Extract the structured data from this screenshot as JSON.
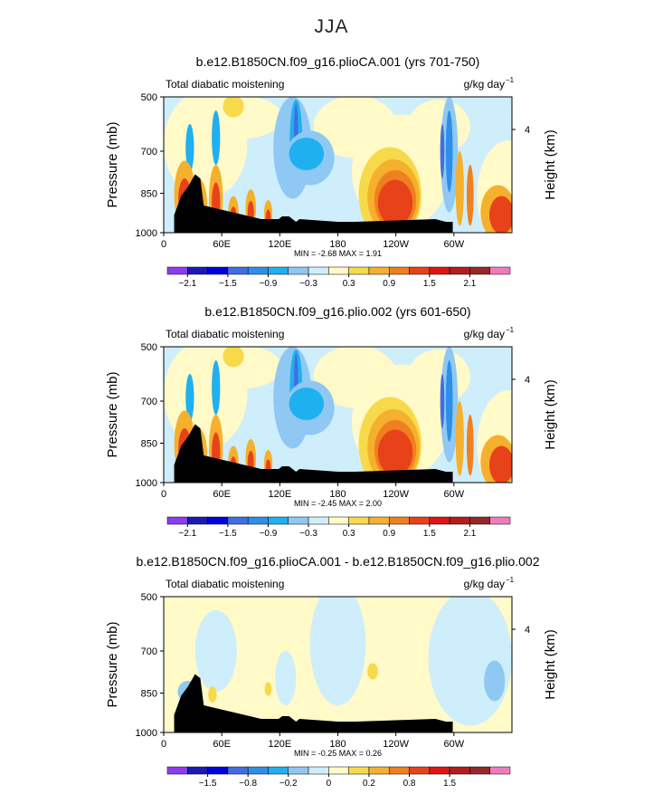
{
  "page_title": "JJA",
  "palette": [
    "#8b3df0",
    "#1a1ab5",
    "#0000e0",
    "#3f6fe0",
    "#2f8fe8",
    "#1fb0f0",
    "#8ec8f3",
    "#cfeefb",
    "#fffac8",
    "#f8d94a",
    "#f5b02d",
    "#f0801f",
    "#e8421a",
    "#e01414",
    "#b21e1e",
    "#962828",
    "#f07ac0"
  ],
  "chart_data": [
    {
      "type": "heatmap",
      "title": "b.e12.B1850CN.f09_g16.plioCA.001 (yrs 701-750)",
      "left_label": "Total diabatic moistening",
      "units_label": "g/kg day",
      "units_exp": "−1",
      "ylabel": "Pressure (mb)",
      "ylabel2": "Height (km)",
      "y_ticks": [
        "500",
        "700",
        "850",
        "1000"
      ],
      "y_right_ticks": [
        "4"
      ],
      "x_ticks": [
        "0",
        "60E",
        "120E",
        "180",
        "120W",
        "60W"
      ],
      "ylim": [
        1000,
        500
      ],
      "stats_label": "MIN =    -2.68   MAX =    1.91",
      "min": -2.68,
      "max": 1.91,
      "colorbar_labels": [
        "−2.1",
        "−1.5",
        "−0.9",
        "−0.3",
        "0.3",
        "0.9",
        "1.5",
        "2.1"
      ]
    },
    {
      "type": "heatmap",
      "title": "b.e12.B1850CN.f09_g16.plio.002 (yrs 601-650)",
      "left_label": "Total diabatic moistening",
      "units_label": "g/kg day",
      "units_exp": "−1",
      "ylabel": "Pressure (mb)",
      "ylabel2": "Height (km)",
      "y_ticks": [
        "500",
        "700",
        "850",
        "1000"
      ],
      "y_right_ticks": [
        "4"
      ],
      "x_ticks": [
        "0",
        "60E",
        "120E",
        "180",
        "120W",
        "60W"
      ],
      "ylim": [
        1000,
        500
      ],
      "stats_label": "MIN =    -2.45   MAX =    2.00",
      "min": -2.45,
      "max": 2.0,
      "colorbar_labels": [
        "−2.1",
        "−1.5",
        "−0.9",
        "−0.3",
        "0.3",
        "0.9",
        "1.5",
        "2.1"
      ]
    },
    {
      "type": "heatmap",
      "title": "b.e12.B1850CN.f09_g16.plioCA.001 - b.e12.B1850CN.f09_g16.plio.002",
      "left_label": "Total diabatic moistening",
      "units_label": "g/kg day",
      "units_exp": "−1",
      "ylabel": "Pressure (mb)",
      "ylabel2": "Height (km)",
      "y_ticks": [
        "500",
        "700",
        "850",
        "1000"
      ],
      "y_right_ticks": [
        "4"
      ],
      "x_ticks": [
        "0",
        "60E",
        "120E",
        "180",
        "120W",
        "60W"
      ],
      "ylim": [
        1000,
        500
      ],
      "stats_label": "MIN =    -0.25   MAX =    0.26",
      "min": -0.25,
      "max": 0.26,
      "colorbar_labels": [
        "−1.5",
        "−0.8",
        "−0.2",
        "0",
        "0.2",
        "0.8",
        "1.5"
      ]
    }
  ]
}
